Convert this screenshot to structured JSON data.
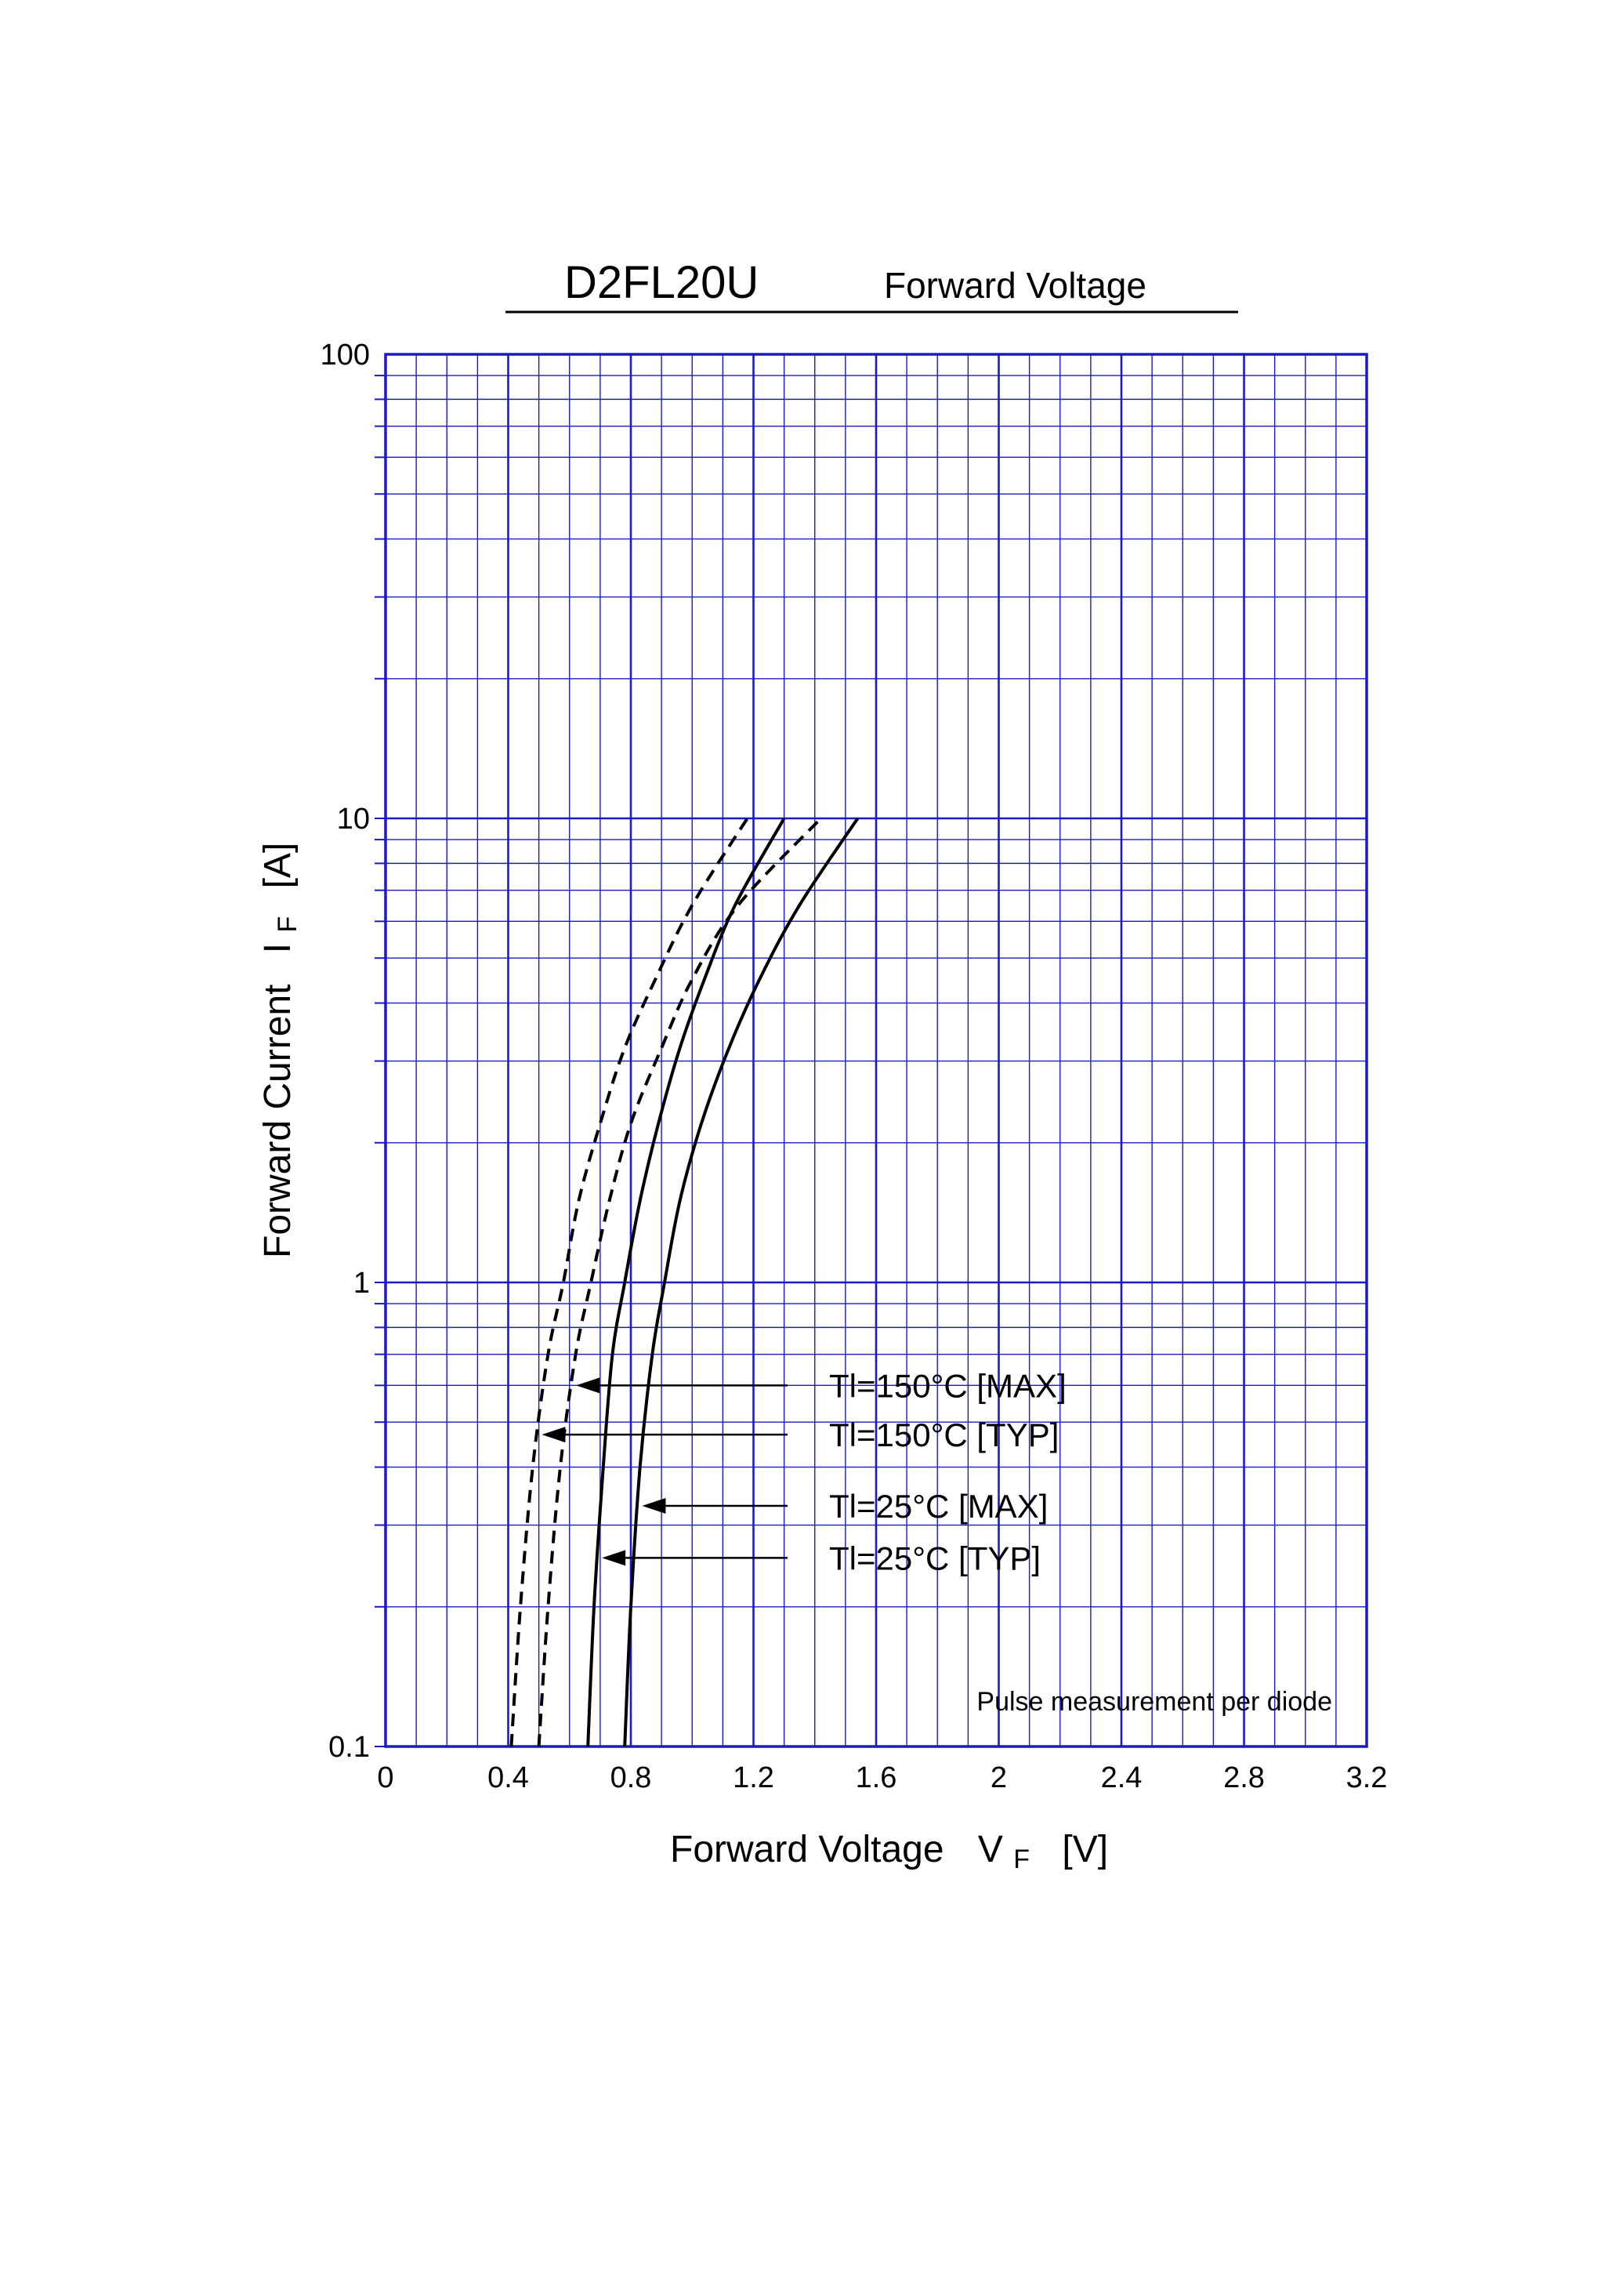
{
  "chart_data": {
    "type": "line",
    "title": "D2FL20U",
    "subtitle": "Forward Voltage",
    "xlabel": "Forward Voltage",
    "xlabel_symbol": "V",
    "xlabel_sub": "F",
    "xlabel_unit": "[V]",
    "ylabel": "Forward Current",
    "ylabel_symbol": "I",
    "ylabel_sub": "F",
    "ylabel_unit": "[A]",
    "xlim": [
      0,
      3.2
    ],
    "ylim": [
      0.1,
      100
    ],
    "yscale": "log",
    "grid": true,
    "grid_color": "#1a1acc",
    "x_ticks": [
      "0",
      "0.4",
      "0.8",
      "1.2",
      "1.6",
      "2",
      "2.4",
      "2.8",
      "3.2"
    ],
    "y_ticks": [
      "0.1",
      "1",
      "10",
      "100"
    ],
    "note": "Pulse measurement per diode",
    "series": [
      {
        "name": "Tl=150°C [MAX]",
        "style": "dashed",
        "x": [
          0.5,
          0.53,
          0.57,
          0.62,
          0.67,
          0.73,
          0.8,
          0.9,
          1.0,
          1.15,
          1.42
        ],
        "y": [
          0.1,
          0.2,
          0.4,
          0.7,
          1.0,
          1.5,
          2.2,
          3.2,
          4.5,
          6.5,
          10
        ]
      },
      {
        "name": "Tl=150°C [TYP]",
        "style": "dashed",
        "x": [
          0.41,
          0.44,
          0.48,
          0.53,
          0.58,
          0.63,
          0.7,
          0.78,
          0.88,
          1.0,
          1.18
        ],
        "y": [
          0.1,
          0.2,
          0.4,
          0.7,
          1.0,
          1.5,
          2.2,
          3.2,
          4.5,
          6.5,
          10
        ]
      },
      {
        "name": "Tl=25°C [MAX]",
        "style": "solid",
        "x": [
          0.78,
          0.8,
          0.83,
          0.87,
          0.91,
          0.96,
          1.03,
          1.12,
          1.22,
          1.35,
          1.54
        ],
        "y": [
          0.1,
          0.2,
          0.4,
          0.7,
          1.0,
          1.5,
          2.2,
          3.2,
          4.5,
          6.5,
          10
        ]
      },
      {
        "name": "Tl=25°C [TYP]",
        "style": "solid",
        "x": [
          0.66,
          0.68,
          0.71,
          0.74,
          0.78,
          0.83,
          0.89,
          0.96,
          1.04,
          1.14,
          1.3
        ],
        "y": [
          0.1,
          0.2,
          0.4,
          0.7,
          1.0,
          1.5,
          2.2,
          3.2,
          4.5,
          6.5,
          10
        ]
      }
    ],
    "annotations": [
      {
        "text": "Tl=150°C [MAX]",
        "series": 0,
        "y": 0.6
      },
      {
        "text": "Tl=150°C [TYP]",
        "series": 1,
        "y": 0.47
      },
      {
        "text": "Tl=25°C [MAX]",
        "series": 2,
        "y": 0.33
      },
      {
        "text": "Tl=25°C [TYP]",
        "series": 3,
        "y": 0.255
      }
    ]
  }
}
